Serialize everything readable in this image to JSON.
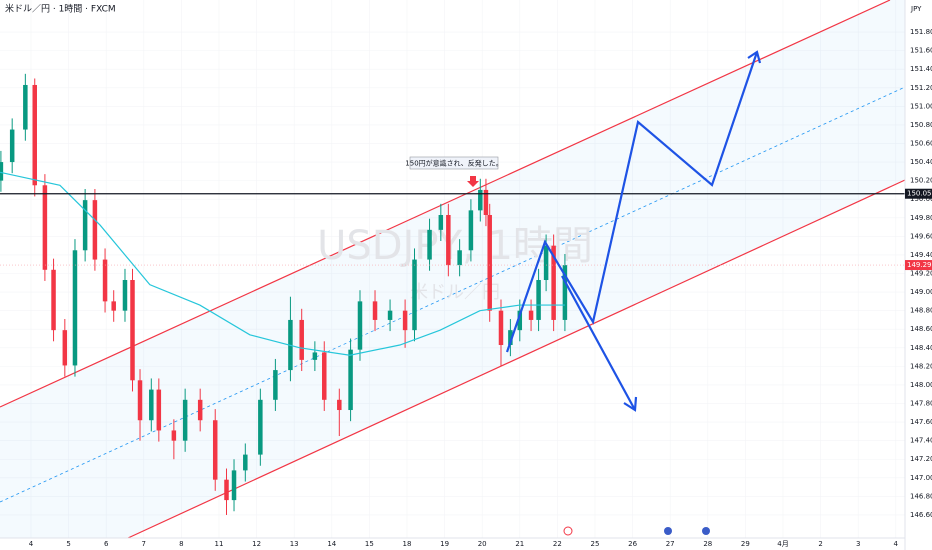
{
  "chart_data": {
    "type": "candlestick",
    "header": "米ドル／円 · 1時間 · FXCM",
    "currency": "JPY",
    "watermark": "USDJPY, 1時間",
    "watermark_sub": "米ドル／円",
    "annotation": "150円が意識され、反発した。",
    "colors": {
      "up": "#089981",
      "down": "#f23645",
      "ma": "#26c6da"
    },
    "xlim": [
      -0.824,
      23.245
    ],
    "ylim": [
      146.352,
      152.145
    ],
    "xticks": [
      {
        "value": 0,
        "label": "4"
      },
      {
        "value": 1,
        "label": "5"
      },
      {
        "value": 2,
        "label": "6"
      },
      {
        "value": 3,
        "label": "7"
      },
      {
        "value": 4,
        "label": "8"
      },
      {
        "value": 5,
        "label": "11"
      },
      {
        "value": 6,
        "label": "12"
      },
      {
        "value": 7,
        "label": "13"
      },
      {
        "value": 8,
        "label": "14"
      },
      {
        "value": 9,
        "label": "15"
      },
      {
        "value": 10,
        "label": "18"
      },
      {
        "value": 11,
        "label": "19"
      },
      {
        "value": 12,
        "label": "20"
      },
      {
        "value": 13,
        "label": "21"
      },
      {
        "value": 14,
        "label": "22"
      },
      {
        "value": 15,
        "label": "25"
      },
      {
        "value": 16,
        "label": "26"
      },
      {
        "value": 17,
        "label": "27"
      },
      {
        "value": 18,
        "label": "28"
      },
      {
        "value": 19,
        "label": "29"
      },
      {
        "value": 20,
        "label": "4月"
      },
      {
        "value": 21,
        "label": "2"
      },
      {
        "value": 22,
        "label": "3"
      },
      {
        "value": 23,
        "label": "4"
      }
    ],
    "yticks": [
      {
        "value": 146.6,
        "label": "146.600"
      },
      {
        "value": 146.8,
        "label": "146.800"
      },
      {
        "value": 147.0,
        "label": "147.000"
      },
      {
        "value": 147.2,
        "label": "147.200"
      },
      {
        "value": 147.4,
        "label": "147.400"
      },
      {
        "value": 147.6,
        "label": "147.600"
      },
      {
        "value": 147.8,
        "label": "147.800"
      },
      {
        "value": 148.0,
        "label": "148.000"
      },
      {
        "value": 148.2,
        "label": "148.200"
      },
      {
        "value": 148.4,
        "label": "148.400"
      },
      {
        "value": 148.6,
        "label": "148.600"
      },
      {
        "value": 148.8,
        "label": "148.800"
      },
      {
        "value": 149.0,
        "label": "149.000"
      },
      {
        "value": 149.2,
        "label": "149.200"
      },
      {
        "value": 149.4,
        "label": "149.400"
      },
      {
        "value": 149.6,
        "label": "149.600"
      },
      {
        "value": 149.8,
        "label": "149.800"
      },
      {
        "value": 150.0,
        "label": "150.000"
      },
      {
        "value": 150.2,
        "label": "150.200"
      },
      {
        "value": 150.4,
        "label": "150.400"
      },
      {
        "value": 150.6,
        "label": "150.600"
      },
      {
        "value": 150.8,
        "label": "150.800"
      },
      {
        "value": 151.0,
        "label": "151.000"
      },
      {
        "value": 151.2,
        "label": "151.200"
      },
      {
        "value": 151.4,
        "label": "151.400"
      },
      {
        "value": 151.6,
        "label": "151.600"
      },
      {
        "value": 151.8,
        "label": "151.800"
      }
    ],
    "hline": {
      "value": 150.059,
      "label": "150.059"
    },
    "last_price": {
      "value": 149.291,
      "label": "149.291"
    },
    "x": [
      -0.8,
      -0.5,
      -0.15,
      0.1,
      0.37,
      0.6,
      0.9,
      1.17,
      1.44,
      1.7,
      1.97,
      2.2,
      2.5,
      2.7,
      2.9,
      3.2,
      3.4,
      3.8,
      4.1,
      4.5,
      4.9,
      5.2,
      5.4,
      5.7,
      6.1,
      6.5,
      6.9,
      7.2,
      7.55,
      7.8,
      8.2,
      8.5,
      8.75,
      9.15,
      9.55,
      9.95,
      10.2,
      10.6,
      10.9,
      11.1,
      11.4,
      11.7,
      11.95,
      12.1,
      12.2,
      12.5,
      12.75,
      13.0,
      13.3,
      13.5,
      13.7,
      13.9,
      14.2
    ],
    "open": [
      150.2,
      150.4,
      150.75,
      151.23,
      150.15,
      149.24,
      148.59,
      148.21,
      149.45,
      149.99,
      149.35,
      148.9,
      148.8,
      149.13,
      148.05,
      147.62,
      147.95,
      147.51,
      147.4,
      147.84,
      147.62,
      146.98,
      146.76,
      147.08,
      147.25,
      147.84,
      148.16,
      148.7,
      148.27,
      148.35,
      147.84,
      147.73,
      148.38,
      148.9,
      148.7,
      148.8,
      148.59,
      149.35,
      149.67,
      149.83,
      149.29,
      149.45,
      149.88,
      150.1,
      149.83,
      148.8,
      148.43,
      148.59,
      148.8,
      148.7,
      149.13,
      149.5,
      148.7
    ],
    "high": [
      150.52,
      150.87,
      151.35,
      151.3,
      150.27,
      149.36,
      148.71,
      149.57,
      150.11,
      150.11,
      149.47,
      149.02,
      149.25,
      149.25,
      148.17,
      148.07,
      148.07,
      147.63,
      147.96,
      147.96,
      147.74,
      147.1,
      147.2,
      147.37,
      147.96,
      148.28,
      148.95,
      148.82,
      148.47,
      148.47,
      147.96,
      148.5,
      149.02,
      149.02,
      148.92,
      148.92,
      149.47,
      149.79,
      149.95,
      149.95,
      149.57,
      150.0,
      150.22,
      150.22,
      149.95,
      148.92,
      148.71,
      148.92,
      148.92,
      149.25,
      149.62,
      149.62,
      149.41
    ],
    "low": [
      150.08,
      150.28,
      150.63,
      150.03,
      149.12,
      148.47,
      148.09,
      148.09,
      149.33,
      149.23,
      148.78,
      148.68,
      148.68,
      147.93,
      147.4,
      147.5,
      147.39,
      147.2,
      147.28,
      147.5,
      146.86,
      146.6,
      146.64,
      146.96,
      147.13,
      147.72,
      148.04,
      148.15,
      148.15,
      147.72,
      147.45,
      147.61,
      148.26,
      148.58,
      148.58,
      148.4,
      148.47,
      149.23,
      149.55,
      149.17,
      149.17,
      149.33,
      149.76,
      149.71,
      148.68,
      148.2,
      148.31,
      148.47,
      148.58,
      148.58,
      149.01,
      148.58,
      148.58
    ],
    "close": [
      150.4,
      150.75,
      151.23,
      150.15,
      149.24,
      148.59,
      148.21,
      149.45,
      149.99,
      149.35,
      148.9,
      148.8,
      149.13,
      148.05,
      147.62,
      147.95,
      147.51,
      147.4,
      147.84,
      147.62,
      146.98,
      146.76,
      147.08,
      147.25,
      147.84,
      148.16,
      148.7,
      148.27,
      148.35,
      147.84,
      147.73,
      148.38,
      148.9,
      148.7,
      148.8,
      148.59,
      149.35,
      149.67,
      149.83,
      149.29,
      149.45,
      149.88,
      150.1,
      149.83,
      148.8,
      148.43,
      148.59,
      148.8,
      148.7,
      149.13,
      149.5,
      148.7,
      149.29
    ],
    "ma": {
      "x": [
        -0.82,
        0.77,
        1.84,
        3.16,
        4.49,
        5.82,
        7.15,
        8.48,
        9.81,
        10.88,
        11.94,
        13.0,
        14.2
      ],
      "values": [
        150.29,
        150.15,
        149.72,
        149.08,
        148.86,
        148.54,
        148.4,
        148.32,
        148.43,
        148.59,
        148.8,
        148.86,
        148.86
      ]
    }
  }
}
